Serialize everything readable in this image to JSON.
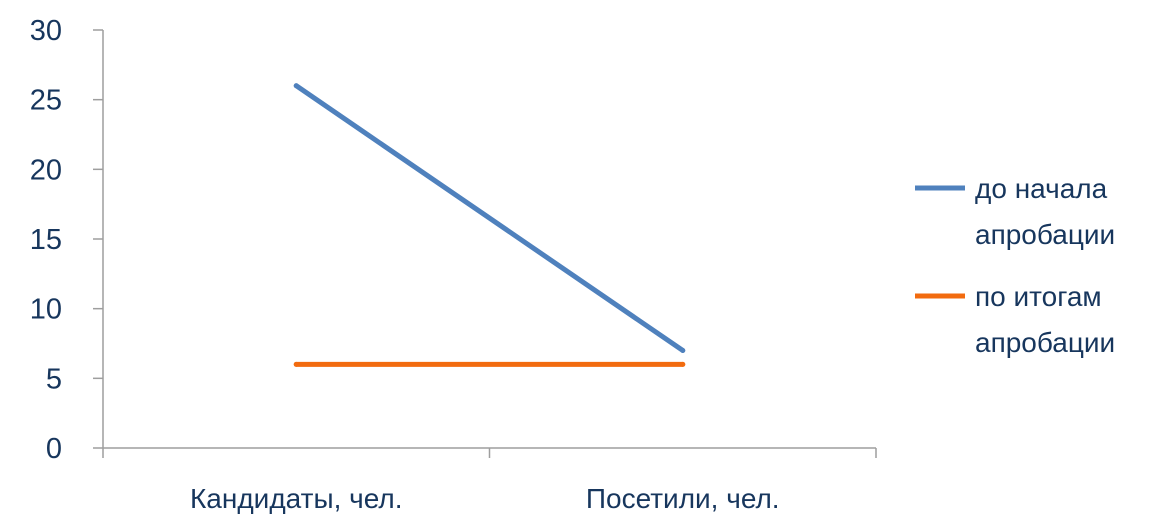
{
  "chart_data": {
    "type": "line",
    "categories": [
      "Кандидаты, чел.",
      "Посетили, чел."
    ],
    "y_ticks": [
      "0",
      "5",
      "10",
      "15",
      "20",
      "25",
      "30"
    ],
    "ylim": [
      0,
      30
    ],
    "series": [
      {
        "name": "до начала апробации",
        "name_lines": [
          "до начала",
          "апробации"
        ],
        "values": [
          26,
          7
        ],
        "color": "#4f81bd"
      },
      {
        "name": "по итогам апробации",
        "name_lines": [
          "по итогам",
          "апробации"
        ],
        "values": [
          6,
          6
        ],
        "color": "#f26b0f"
      }
    ],
    "grid": false,
    "legend_position": "right"
  }
}
